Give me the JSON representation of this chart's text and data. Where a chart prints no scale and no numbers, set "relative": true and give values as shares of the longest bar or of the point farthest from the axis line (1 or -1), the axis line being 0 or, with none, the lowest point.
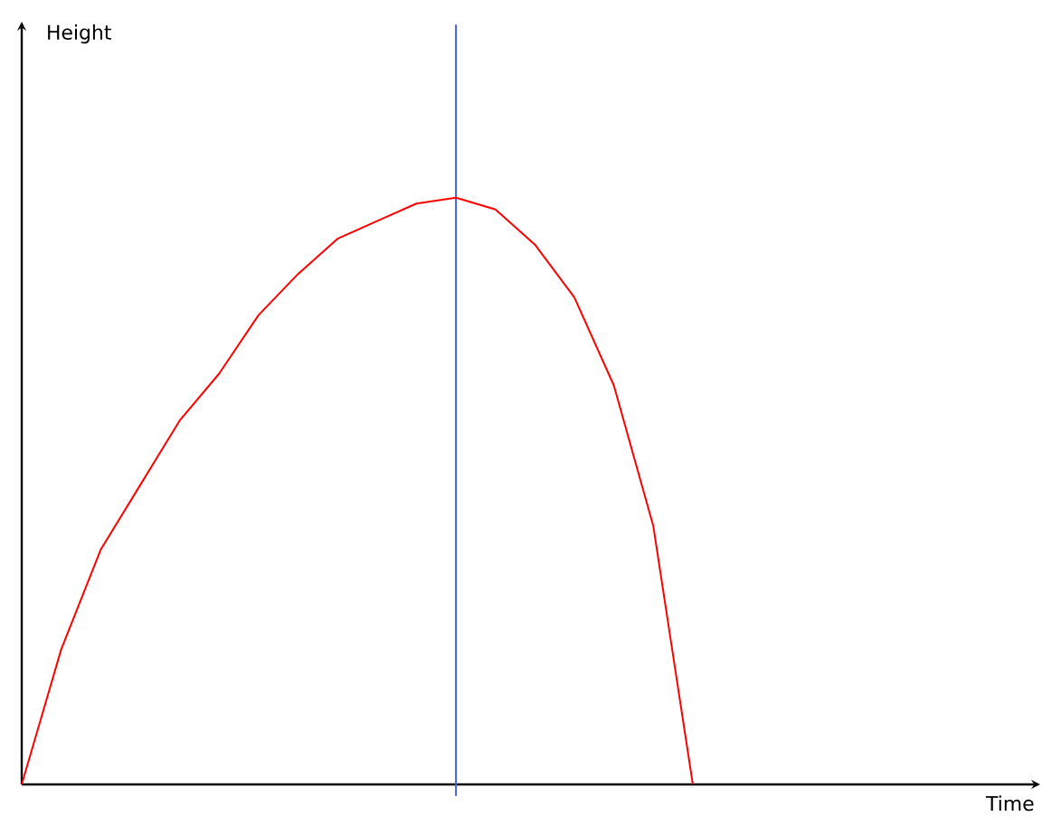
{
  "chart_data": {
    "type": "line",
    "xlabel": "Time",
    "annotations": [
      "Height"
    ],
    "relative": true,
    "categories": [
      null,
      null,
      null,
      null,
      null,
      null,
      null,
      null,
      null,
      null,
      null,
      null,
      null,
      null,
      null,
      null,
      null,
      null,
      null,
      null,
      null,
      null,
      null,
      null,
      null,
      null
    ],
    "series": [
      {
        "color": "#ff0000",
        "values": [
          0,
          0.23,
          0.4,
          0.51,
          0.62,
          0.7,
          0.8,
          0.87,
          0.93,
          0.96,
          0.99,
          1,
          0.98,
          0.92,
          0.83,
          0.68,
          0.44,
          0,
          null,
          null,
          null,
          null,
          null,
          null,
          null,
          null
        ]
      }
    ],
    "marker": "none",
    "line_style": "solid"
  }
}
